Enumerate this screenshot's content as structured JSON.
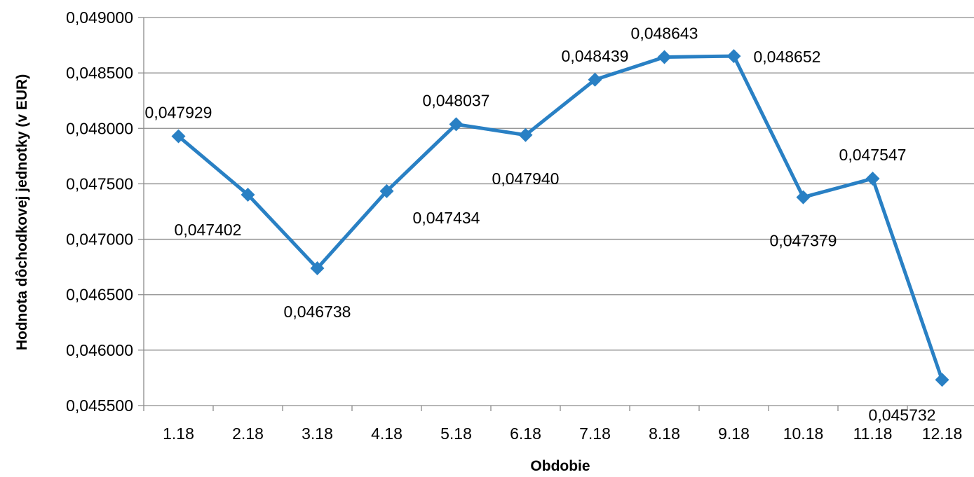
{
  "chart_data": {
    "type": "line",
    "xlabel": "Obdobie",
    "ylabel": "Hodnota dôchodkovej jednotky (v EUR)",
    "categories": [
      "1.18",
      "2.18",
      "3.18",
      "4.18",
      "5.18",
      "6.18",
      "7.18",
      "8.18",
      "9.18",
      "10.18",
      "11.18",
      "12.18"
    ],
    "series": [
      {
        "values": [
          0.047929,
          0.047402,
          0.046738,
          0.047434,
          0.048037,
          0.04794,
          0.048439,
          0.048643,
          0.048652,
          0.047379,
          0.047547,
          0.045732
        ],
        "labels": [
          "0,047929",
          "0,047402",
          "0,046738",
          "0,047434",
          "0,048037",
          "0,047940",
          "0,048439",
          "0,048643",
          "0,048652",
          "0,047379",
          "0,047547",
          "0,045732"
        ],
        "label_positions": [
          "above",
          "below-left",
          "below",
          "below-right",
          "above",
          "below",
          "above",
          "above",
          "right",
          "below",
          "above",
          "below-left"
        ],
        "color": "#2980c4"
      }
    ],
    "ylim": [
      0.0455,
      0.049
    ],
    "yticks": [
      0.0455,
      0.046,
      0.0465,
      0.047,
      0.0475,
      0.048,
      0.0485,
      0.049
    ],
    "ytick_labels": [
      "0,045500",
      "0,046000",
      "0,046500",
      "0,047000",
      "0,047500",
      "0,048000",
      "0,048500",
      "0,049000"
    ],
    "grid": true,
    "legend": "none",
    "marker": "diamond"
  }
}
